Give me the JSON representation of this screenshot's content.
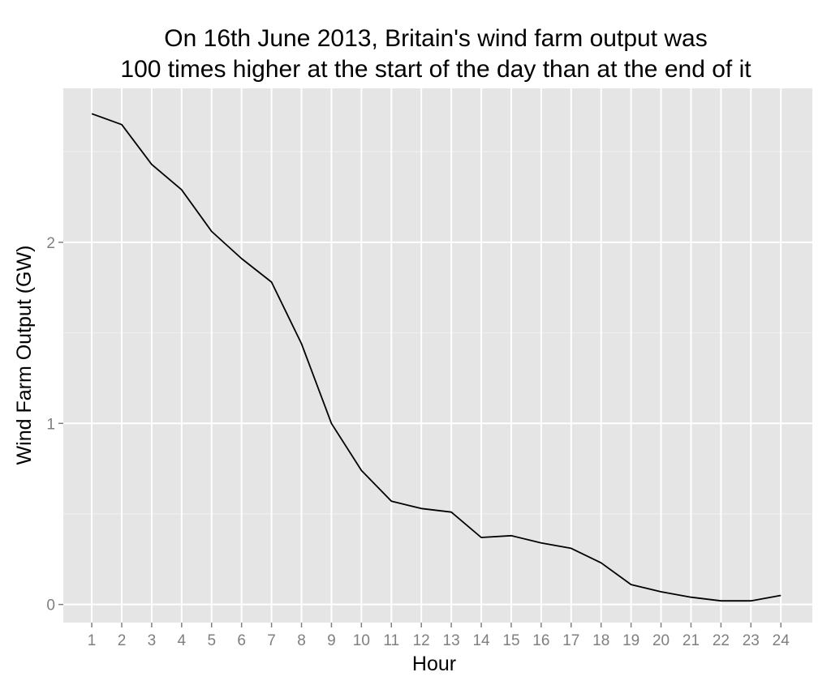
{
  "chart_data": {
    "type": "line",
    "title_lines": [
      "On 16th June 2013, Britain's wind farm output was",
      "100 times higher at the start of the day than at the end of it"
    ],
    "xlabel": "Hour",
    "ylabel": "Wind Farm Output (GW)",
    "x": [
      1,
      2,
      3,
      4,
      5,
      6,
      7,
      8,
      9,
      10,
      11,
      12,
      13,
      14,
      15,
      16,
      17,
      18,
      19,
      20,
      21,
      22,
      23,
      24
    ],
    "x_tick_labels": [
      "1",
      "2",
      "3",
      "4",
      "5",
      "6",
      "7",
      "8",
      "9",
      "10",
      "11",
      "12",
      "13",
      "14",
      "15",
      "16",
      "17",
      "18",
      "19",
      "20",
      "21",
      "22",
      "23",
      "24"
    ],
    "series": [
      {
        "values": [
          2.71,
          2.65,
          2.43,
          2.29,
          2.06,
          1.91,
          1.78,
          1.44,
          1.0,
          0.74,
          0.57,
          0.53,
          0.51,
          0.37,
          0.38,
          0.34,
          0.31,
          0.23,
          0.11,
          0.07,
          0.04,
          0.02,
          0.02,
          0.05
        ],
        "color": "#000000"
      }
    ],
    "y_ticks": [
      0,
      1,
      2
    ],
    "y_tick_labels": [
      "0",
      "1",
      "2"
    ],
    "xlim": [
      0.05,
      25.05
    ],
    "ylim": [
      -0.1,
      2.85
    ],
    "grid": true,
    "colors": {
      "panel_background": "#e5e5e5",
      "grid_major": "#ffffff",
      "grid_minor": "#f2f2f2",
      "line": "#000000",
      "tick_label": "#7f7f7f"
    }
  }
}
